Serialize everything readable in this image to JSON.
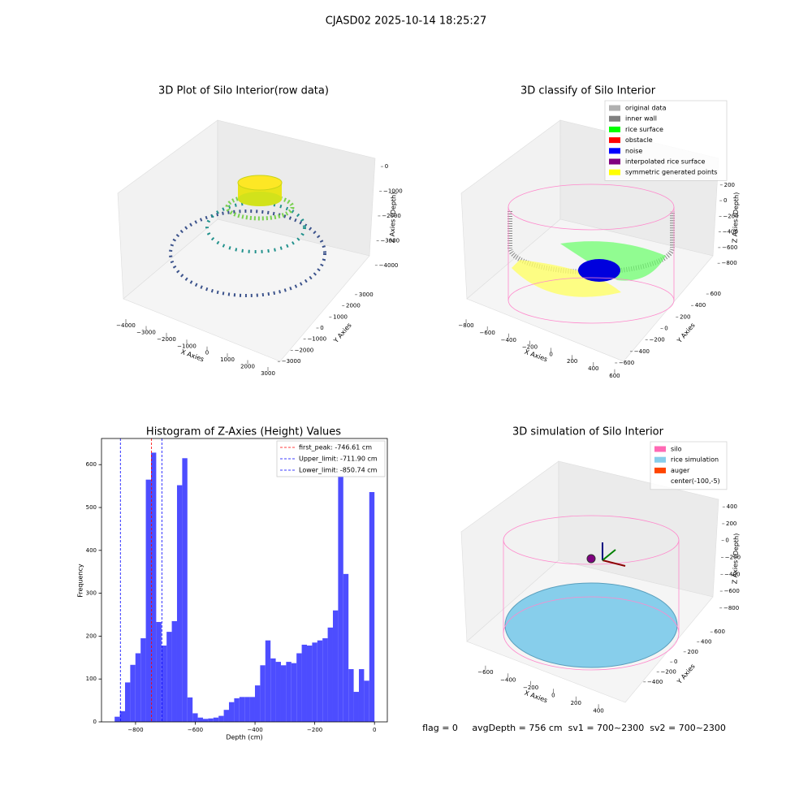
{
  "title": "CJASD02 2025-10-14 18:25:27",
  "footer": "flag = 0     avgDepth = 756 cm  sv1 = 700~2300  sv2 = 700~2300",
  "chart_data": [
    {
      "type": "scatter3d",
      "title": "3D Plot of Silo Interior(row data)",
      "xlabel": "X Axies",
      "ylabel": "Y Axies",
      "zlabel": "Z Axies (Depth)",
      "xlim": [
        -4300,
        3300
      ],
      "xticks": [
        {
          "value": -4000,
          "label": "−4000"
        },
        {
          "value": -3000,
          "label": "−3000"
        },
        {
          "value": -2000,
          "label": "−2000"
        },
        {
          "value": -1000,
          "label": "−1000"
        },
        0,
        1000,
        2000,
        3000
      ],
      "ylim": [
        -3500,
        3500
      ],
      "yticks": [
        {
          "value": -3000,
          "label": "−3000"
        },
        {
          "value": -2000,
          "label": "−2000"
        },
        {
          "value": -1000,
          "label": "−1000"
        },
        0,
        1000,
        2000,
        3000
      ],
      "zlim": [
        -4500,
        200
      ],
      "zticks": [
        0,
        {
          "value": -1000,
          "label": "−1000"
        },
        {
          "value": -2000,
          "label": "−2000"
        },
        {
          "value": -3000,
          "label": "−3000"
        },
        {
          "value": -4000,
          "label": "−4000"
        }
      ]
    },
    {
      "type": "scatter3d",
      "title": "3D classify of Silo Interior",
      "xlabel": "X Axies",
      "ylabel": "Y Axies",
      "zlabel": "Z Axies (Depth)",
      "xlim": [
        -850,
        650
      ],
      "xticks": [
        {
          "value": -800,
          "label": "−800"
        },
        {
          "value": -600,
          "label": "−600"
        },
        {
          "value": -400,
          "label": "−400"
        },
        {
          "value": -200,
          "label": "−200"
        },
        0,
        200,
        400,
        600
      ],
      "ylim": [
        -650,
        650
      ],
      "yticks": [
        {
          "value": -600,
          "label": "−600"
        },
        {
          "value": -400,
          "label": "−400"
        },
        {
          "value": -200,
          "label": "−200"
        },
        0,
        200,
        400,
        600
      ],
      "zlim": [
        -850,
        250
      ],
      "zticks": [
        200,
        0,
        {
          "value": -200,
          "label": "−200"
        },
        {
          "value": -400,
          "label": "−400"
        },
        {
          "value": -600,
          "label": "−600"
        },
        {
          "value": -800,
          "label": "−800"
        }
      ],
      "legend": [
        {
          "name": "original data",
          "color": "#b0b0b0"
        },
        {
          "name": "inner wall",
          "color": "#808080"
        },
        {
          "name": "rice surface",
          "color": "#00ff00"
        },
        {
          "name": "obstacle",
          "color": "#ff0000"
        },
        {
          "name": "noise",
          "color": "#0000ff"
        },
        {
          "name": "interpolated rice surface",
          "color": "#800080"
        },
        {
          "name": "symmetric generated points",
          "color": "#ffff00"
        }
      ]
    },
    {
      "type": "histogram",
      "title": "Histogram of Z-Axies (Height) Values",
      "xlabel": "Depth (cm)",
      "ylabel": "Frequency",
      "color": "#4d4dff",
      "bins": [
        -870,
        -852.6,
        -835.2,
        -817.8,
        -800.4,
        -783,
        -765.6,
        -748.2,
        -730.8,
        -713.4,
        -696,
        -678.6,
        -661.2,
        -643.8,
        -626.4,
        -609,
        -591.6,
        -574.2,
        -556.8,
        -539.4,
        -522,
        -504.6,
        -487.2,
        -469.8,
        -452.4,
        -435,
        -417.6,
        -400.2,
        -382.8,
        -365.4,
        -348,
        -330.6,
        -313.2,
        -295.8,
        -278.4,
        -261,
        -243.6,
        -226.2,
        -208.8,
        -191.4,
        -174,
        -156.6,
        -139.2,
        -121.8,
        -104.4,
        -87,
        -69.6,
        -52.2,
        -34.8,
        -17.4,
        0
      ],
      "counts": [
        12,
        25,
        92,
        133,
        160,
        195,
        565,
        628,
        233,
        178,
        210,
        235,
        552,
        615,
        57,
        20,
        10,
        7,
        8,
        10,
        14,
        28,
        46,
        55,
        58,
        58,
        58,
        85,
        132,
        190,
        148,
        140,
        132,
        140,
        137,
        160,
        180,
        178,
        185,
        190,
        195,
        220,
        260,
        575,
        345,
        123,
        70,
        123,
        96,
        536
      ],
      "xlim": [
        -914,
        43
      ],
      "xticks": [
        {
          "value": -800,
          "label": "−800"
        },
        {
          "value": -600,
          "label": "−600"
        },
        {
          "value": -400,
          "label": "−400"
        },
        {
          "value": -200,
          "label": "−200"
        },
        0
      ],
      "ylim": [
        0,
        661
      ],
      "yticks": [
        0,
        100,
        200,
        300,
        400,
        500,
        600
      ],
      "lines": [
        {
          "name": "first_peak: -746.61 cm",
          "value": -746.61,
          "color": "#ff0000"
        },
        {
          "name": "Upper_limit: -711.90 cm",
          "value": -711.9,
          "color": "#0000ff"
        },
        {
          "name": "Lower_limit: -850.74 cm",
          "value": -850.74,
          "color": "#0000ff"
        }
      ]
    },
    {
      "type": "surface3d",
      "title": "3D simulation of Silo Interior",
      "xlabel": "X Axies",
      "ylabel": "Y Axies",
      "zlabel": "Z Axies (Depth)",
      "xlim": [
        -700,
        500
      ],
      "xticks": [
        {
          "value": -600,
          "label": "−600"
        },
        {
          "value": -400,
          "label": "−400"
        },
        {
          "value": -200,
          "label": "−200"
        },
        0,
        200,
        400
      ],
      "ylim": [
        -500,
        700
      ],
      "yticks": [
        {
          "value": -400,
          "label": "−400"
        },
        {
          "value": -200,
          "label": "−200"
        },
        0,
        200,
        400,
        600
      ],
      "zlim": [
        -850,
        450
      ],
      "zticks": [
        400,
        200,
        0,
        {
          "value": -200,
          "label": "−200"
        },
        {
          "value": -400,
          "label": "−400"
        },
        {
          "value": -600,
          "label": "−600"
        },
        {
          "value": -800,
          "label": "−800"
        }
      ],
      "legend": [
        {
          "name": "silo",
          "color": "#ff69b4"
        },
        {
          "name": "rice simulation",
          "color": "#87ceeb"
        },
        {
          "name": "auger",
          "color": "#ff4500"
        },
        {
          "name": "center(-100,-5)",
          "color": "#ffffff"
        }
      ]
    }
  ]
}
